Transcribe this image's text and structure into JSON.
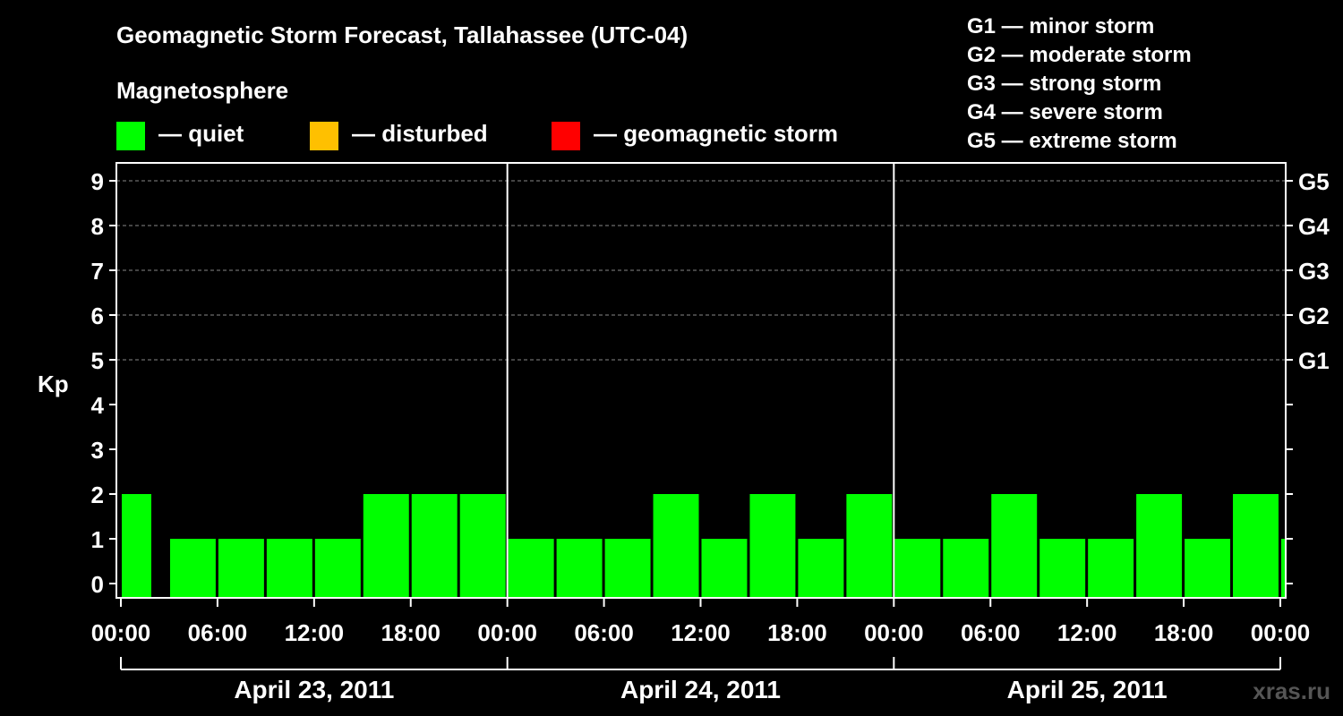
{
  "header": {
    "title": "Geomagnetic Storm Forecast, Tallahassee (UTC-04)",
    "subtitle": "Magnetosphere"
  },
  "legend": {
    "items": [
      {
        "label": "— quiet",
        "color": "#00ff00"
      },
      {
        "label": "— disturbed",
        "color": "#ffc000"
      },
      {
        "label": "— geomagnetic storm",
        "color": "#ff0000"
      }
    ]
  },
  "storm_levels": [
    "G1 — minor storm",
    "G2 — moderate storm",
    "G3 — strong storm",
    "G4 — severe storm",
    "G5 — extreme storm"
  ],
  "watermark": "xras.ru",
  "chart_data": {
    "type": "bar",
    "ylabel": "Kp",
    "ylim": [
      0,
      9
    ],
    "yticks": [
      0,
      1,
      2,
      3,
      4,
      5,
      6,
      7,
      8,
      9
    ],
    "right_axis_labels": [
      {
        "kp": 5,
        "label": "G1"
      },
      {
        "kp": 6,
        "label": "G2"
      },
      {
        "kp": 7,
        "label": "G3"
      },
      {
        "kp": 8,
        "label": "G4"
      },
      {
        "kp": 9,
        "label": "G5"
      }
    ],
    "grid": "dashed horizontal at Kp 5-9",
    "x_tick_labels": [
      "00:00",
      "06:00",
      "12:00",
      "18:00",
      "00:00",
      "06:00",
      "12:00",
      "18:00",
      "00:00",
      "06:00",
      "12:00",
      "18:00",
      "00:00"
    ],
    "days": [
      "April 23, 2011",
      "April 24, 2011",
      "April 25, 2011"
    ],
    "bar_color": "#00ff00",
    "bars": [
      {
        "start_hour": 0,
        "end_hour": 2,
        "kp": 2
      },
      {
        "start_hour": 3,
        "end_hour": 6,
        "kp": 1
      },
      {
        "start_hour": 6,
        "end_hour": 9,
        "kp": 1
      },
      {
        "start_hour": 9,
        "end_hour": 12,
        "kp": 1
      },
      {
        "start_hour": 12,
        "end_hour": 15,
        "kp": 1
      },
      {
        "start_hour": 15,
        "end_hour": 18,
        "kp": 2
      },
      {
        "start_hour": 18,
        "end_hour": 21,
        "kp": 2
      },
      {
        "start_hour": 21,
        "end_hour": 24,
        "kp": 2
      },
      {
        "start_hour": 24,
        "end_hour": 27,
        "kp": 1
      },
      {
        "start_hour": 27,
        "end_hour": 30,
        "kp": 1
      },
      {
        "start_hour": 30,
        "end_hour": 33,
        "kp": 1
      },
      {
        "start_hour": 33,
        "end_hour": 36,
        "kp": 2
      },
      {
        "start_hour": 36,
        "end_hour": 39,
        "kp": 1
      },
      {
        "start_hour": 39,
        "end_hour": 42,
        "kp": 2
      },
      {
        "start_hour": 42,
        "end_hour": 45,
        "kp": 1
      },
      {
        "start_hour": 45,
        "end_hour": 48,
        "kp": 2
      },
      {
        "start_hour": 48,
        "end_hour": 51,
        "kp": 1
      },
      {
        "start_hour": 51,
        "end_hour": 54,
        "kp": 1
      },
      {
        "start_hour": 54,
        "end_hour": 57,
        "kp": 2
      },
      {
        "start_hour": 57,
        "end_hour": 60,
        "kp": 1
      },
      {
        "start_hour": 60,
        "end_hour": 63,
        "kp": 1
      },
      {
        "start_hour": 63,
        "end_hour": 66,
        "kp": 2
      },
      {
        "start_hour": 66,
        "end_hour": 69,
        "kp": 1
      },
      {
        "start_hour": 69,
        "end_hour": 72,
        "kp": 2
      },
      {
        "start_hour": 72,
        "end_hour": 72.5,
        "kp": 1
      }
    ]
  }
}
